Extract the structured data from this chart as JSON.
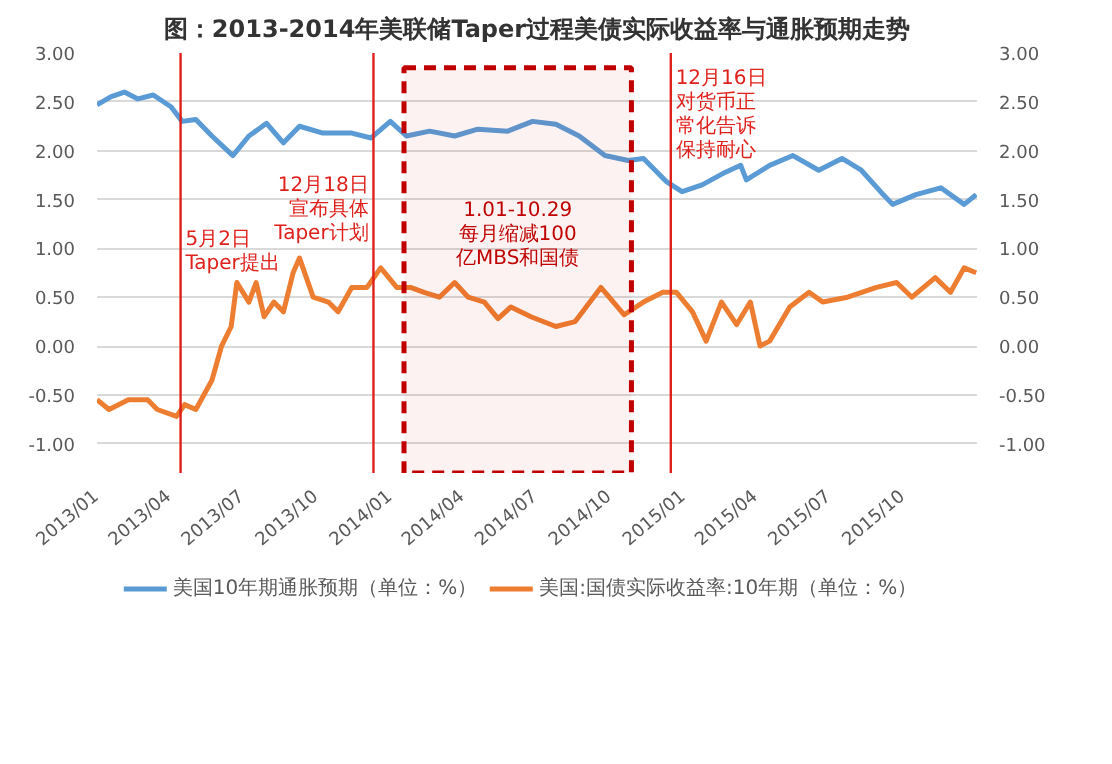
{
  "chart_data": {
    "type": "line",
    "title": "图：2013-2014年美联储Taper过程美债实际收益率与通胀预期走势",
    "x": [
      "2013-01-01",
      "2013-01-18",
      "2013-02-04",
      "2013-02-21",
      "2013-03-12",
      "2013-04-03",
      "2013-04-17",
      "2013-05-04",
      "2013-05-24",
      "2013-06-19",
      "2013-07-09",
      "2013-07-31",
      "2013-08-21",
      "2013-09-10",
      "2013-10-09",
      "2013-11-14",
      "2013-12-08",
      "2014-01-01",
      "2014-01-21",
      "2014-02-19",
      "2014-03-22",
      "2014-04-20",
      "2014-05-27",
      "2014-06-27",
      "2014-07-26",
      "2014-08-24",
      "2014-09-25",
      "2014-10-24",
      "2014-11-12",
      "2014-12-11",
      "2014-12-30",
      "2015-01-24",
      "2015-02-22",
      "2015-03-13",
      "2015-03-20",
      "2015-04-18",
      "2015-05-17",
      "2015-06-18",
      "2015-07-17",
      "2015-08-10",
      "2015-09-03",
      "2015-09-18",
      "2015-10-17",
      "2015-11-17",
      "2015-12-16",
      "2015-12-31"
    ],
    "series": [
      {
        "name": "美国10年期通胀预期（单位：%）",
        "color": "#5b9bd5",
        "values": [
          2.47,
          2.55,
          2.6,
          2.53,
          2.57,
          2.45,
          2.3,
          2.32,
          2.15,
          1.95,
          2.15,
          2.28,
          2.08,
          2.25,
          2.18,
          2.18,
          2.13,
          2.3,
          2.15,
          2.2,
          2.15,
          2.22,
          2.2,
          2.3,
          2.27,
          2.15,
          1.95,
          1.9,
          1.92,
          1.68,
          1.58,
          1.65,
          1.78,
          1.85,
          1.7,
          1.85,
          1.95,
          1.8,
          1.92,
          1.8,
          1.58,
          1.45,
          1.55,
          1.62,
          1.45,
          1.55
        ]
      },
      {
        "name": "美国:国债实际收益率:10年期（单位：%）",
        "color": "#ed7d31",
        "x": [
          "2013-01-01",
          "2013-01-16",
          "2013-02-09",
          "2013-03-05",
          "2013-03-17",
          "2013-04-10",
          "2013-04-20",
          "2013-05-04",
          "2013-05-24",
          "2013-06-05",
          "2013-06-17",
          "2013-06-24",
          "2013-07-09",
          "2013-07-18",
          "2013-07-28",
          "2013-08-09",
          "2013-08-21",
          "2013-09-02",
          "2013-09-10",
          "2013-09-27",
          "2013-10-16",
          "2013-10-28",
          "2013-11-14",
          "2013-12-03",
          "2013-12-20",
          "2014-01-09",
          "2014-01-26",
          "2014-02-12",
          "2014-03-03",
          "2014-03-22",
          "2014-04-08",
          "2014-04-28",
          "2014-05-15",
          "2014-05-31",
          "2014-06-25",
          "2014-07-26",
          "2014-08-19",
          "2014-09-20",
          "2014-10-19",
          "2014-11-12",
          "2014-12-06",
          "2014-12-23",
          "2015-01-12",
          "2015-01-29",
          "2015-02-17",
          "2015-03-08",
          "2015-03-25",
          "2015-04-06",
          "2015-04-18",
          "2015-05-13",
          "2015-06-06",
          "2015-06-23",
          "2015-07-24",
          "2015-08-29",
          "2015-09-23",
          "2015-10-12",
          "2015-11-10",
          "2015-11-29",
          "2015-12-16",
          "2015-12-31"
        ],
        "values": [
          -0.55,
          -0.65,
          -0.55,
          -0.55,
          -0.65,
          -0.72,
          -0.6,
          -0.65,
          -0.35,
          0.0,
          0.2,
          0.65,
          0.45,
          0.65,
          0.3,
          0.45,
          0.35,
          0.75,
          0.9,
          0.5,
          0.45,
          0.35,
          0.6,
          0.6,
          0.8,
          0.6,
          0.6,
          0.55,
          0.5,
          0.65,
          0.5,
          0.45,
          0.28,
          0.4,
          0.3,
          0.2,
          0.25,
          0.6,
          0.32,
          0.45,
          0.55,
          0.55,
          0.35,
          0.05,
          0.45,
          0.22,
          0.45,
          0.0,
          0.05,
          0.4,
          0.55,
          0.45,
          0.5,
          0.6,
          0.65,
          0.5,
          0.7,
          0.55,
          0.8,
          0.75
        ]
      }
    ],
    "xlim": [
      "2013-01-01",
      "2016-01-01"
    ],
    "xticks": [
      {
        "value": "2013-01-01",
        "label": "2013/01"
      },
      {
        "value": "2013-04-01",
        "label": "2013/04"
      },
      {
        "value": "2013-07-01",
        "label": "2013/07"
      },
      {
        "value": "2013-10-01",
        "label": "2013/10"
      },
      {
        "value": "2014-01-01",
        "label": "2014/01"
      },
      {
        "value": "2014-04-01",
        "label": "2014/04"
      },
      {
        "value": "2014-07-01",
        "label": "2014/07"
      },
      {
        "value": "2014-10-01",
        "label": "2014/10"
      },
      {
        "value": "2015-01-01",
        "label": "2015/01"
      },
      {
        "value": "2015-04-01",
        "label": "2015/04"
      },
      {
        "value": "2015-07-01",
        "label": "2015/07"
      },
      {
        "value": "2015-10-01",
        "label": "2015/10"
      }
    ],
    "ylim": [
      -1.3,
      3.0
    ],
    "yticks": [
      {
        "value": -1.0,
        "label": "-1.00"
      },
      {
        "value": -0.5,
        "label": "-0.50"
      },
      {
        "value": 0,
        "label": "0.00"
      },
      {
        "value": 0.5,
        "label": "0.50"
      },
      {
        "value": 1.0,
        "label": "1.00"
      },
      {
        "value": 1.5,
        "label": "1.50"
      },
      {
        "value": 2.0,
        "label": "2.00"
      },
      {
        "value": 2.5,
        "label": "2.50"
      },
      {
        "value": 3.0,
        "label": "3.00"
      }
    ],
    "y2lim": [
      -1.3,
      3.0
    ],
    "y2ticks": [
      {
        "value": -1.0,
        "label": "-1.00"
      },
      {
        "value": -0.5,
        "label": "-0.50"
      },
      {
        "value": 0,
        "label": "0.00"
      },
      {
        "value": 0.5,
        "label": "0.50"
      },
      {
        "value": 1.0,
        "label": "1.00"
      },
      {
        "value": 1.5,
        "label": "1.50"
      },
      {
        "value": 2.0,
        "label": "2.00"
      },
      {
        "value": 2.5,
        "label": "2.50"
      },
      {
        "value": 3.0,
        "label": "3.00"
      }
    ],
    "ref_lines": [
      {
        "axis": "x",
        "value": "2013-04-15",
        "label": "5月2日Taper提出",
        "color": "#e0201b"
      },
      {
        "axis": "x",
        "value": "2013-12-11",
        "label": "12月18日宣布具体Taper计划",
        "color": "#e0201b"
      },
      {
        "axis": "x",
        "value": "2014-12-16",
        "label": "12月16日对货币正常化告诉保持耐心",
        "color": "#e0201b"
      }
    ],
    "bands": [
      {
        "axis": "x",
        "from": "2014-01-18",
        "to": "2014-10-28",
        "label": "1.01-10.29每月缩减100亿MBS和国债",
        "color": "#c00000"
      }
    ],
    "grid": "y",
    "legend": "bottom",
    "line_style": "solid",
    "marker": "none"
  }
}
